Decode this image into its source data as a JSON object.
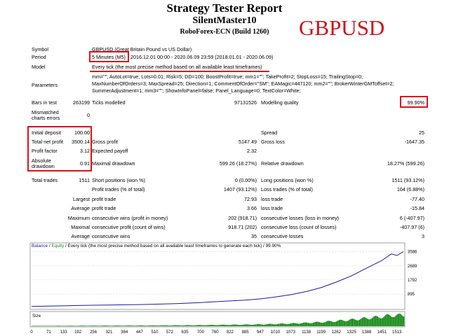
{
  "header": {
    "title": "Strategy Tester Report",
    "ea_name": "SilentMaster10",
    "broker": "RoboForex-ECN (Build 1260)",
    "overlay_symbol": "GBPUSD"
  },
  "info": {
    "symbol_label": "Symbol",
    "symbol_value": "GBPUSD (Great Britain Pound vs US Dollar)",
    "period_label": "Period",
    "period_tf": "5 Minutes (M5)",
    "period_range": "2016.12.01 00:00 - 2020.06.09 23:59 (2018.01.01 - 2020.06.09)",
    "model_label": "Model",
    "model_value": "Every tick (the most precise method based on all available least timeframes)",
    "params_label": "Parameters",
    "params_lines": [
      "mm=\"\"; AutoLot=true; Lots=0.01; Risk=5; DD=100; BoostProfit=true; mm1=\"\"; TakeProfit=2; StopLoss=15; TrailingStop=0;",
      "MaxNumberOfOrders=3; MaxSpread=25; Direction=1; CommentOfOrder=\"SM\"; EAMagic=447120; mm2=\"\"; BrokerWinterGMToffset=2;",
      "SummerAdjustment=1; mm3=\"\"; ShowInfoPanel=false; Panel_Language=0; TextColor=White;"
    ]
  },
  "bars": {
    "bars_label": "Bars in test",
    "bars_value": "263199",
    "ticks_label": "Ticks modelled",
    "ticks_value": "97131526",
    "quality_label": "Modelling quality",
    "quality_value": "99.90%",
    "mismatch_label_1": "Mismatched",
    "mismatch_label_2": "charts errors",
    "mismatch_value": "0"
  },
  "stats": {
    "initial_deposit_label": "Initial deposit",
    "initial_deposit": "100.00",
    "spread_label": "Spread",
    "spread": "25",
    "net_profit_label": "Total net profit",
    "net_profit": "3500.14",
    "gross_profit_label": "Gross profit",
    "gross_profit": "5147.49",
    "gross_loss_label": "Gross loss",
    "gross_loss": "-1647.35",
    "profit_factor_label": "Profit factor",
    "profit_factor": "3.12",
    "expected_payoff_label": "Expected payoff",
    "expected_payoff": "2.32",
    "abs_dd_label_1": "Absolute",
    "abs_dd_label_2": "drawdown",
    "abs_dd": "0.91",
    "max_dd_label": "Maximal drawdown",
    "max_dd": "599.26 (18.27%)",
    "rel_dd_label": "Relative drawdown",
    "rel_dd": "18.27% (599.26)"
  },
  "trades": {
    "total_label": "Total trades",
    "total": "1511",
    "short_label": "Short positions (won %)",
    "short": "0 (0.00%)",
    "long_label": "Long positions (won %)",
    "long": "1511 (93.12%)",
    "pt_label": "Profit trades (% of total)",
    "pt": "1407 (93.12%)",
    "lt_label": "Loss trades (% of total)",
    "lt": "104 (6.88%)",
    "largest_label": "Largest",
    "largest_profit_label": "profit trade",
    "largest_profit": "72.93",
    "largest_loss_label": "loss trade",
    "largest_loss": "-77.40",
    "average_label": "Average",
    "avg_profit_label": "profit trade",
    "avg_profit": "3.66",
    "avg_loss_label": "loss trade",
    "avg_loss": "-15.84",
    "maximum_label": "Maximum",
    "max_cw_label": "consecutive wins (profit in money)",
    "max_cw": "202 (918.71)",
    "max_cl_label": "consecutive losses (loss in money)",
    "max_cl": "6 (-407.97)",
    "maximal_label": "Maximal",
    "maximal_cp_label": "consecutive profit (count of wins)",
    "maximal_cp": "918.71 (202)",
    "maximal_cl_label": "consecutive loss (count of losses)",
    "maximal_cl": "-407.97 (6)",
    "average2_label": "Average",
    "avg_cw_label": "consecutive wins",
    "avg_cw": "35",
    "avg_cl_label": "consecutive losses",
    "avg_cl": "3"
  },
  "chart_header": {
    "balance": "Balance",
    "sep": "/",
    "equity": "Equity",
    "rest": "/ Every tick (the most precise method based on all available least timeframes to generate each tick) / 99.90%"
  },
  "chart_data": {
    "type": "line",
    "series": [
      {
        "name": "Balance",
        "color": "#1a1aa8",
        "x": [
          0,
          71,
          133,
          192,
          256,
          321,
          384,
          447,
          510,
          572,
          635,
          700,
          760,
          822,
          885,
          947,
          1010,
          1073,
          1138,
          1199,
          1262,
          1325,
          1388,
          1451,
          1490,
          1513,
          1540
        ],
        "values": [
          100,
          120,
          140,
          160,
          180,
          190,
          205,
          220,
          240,
          270,
          300,
          350,
          400,
          450,
          500,
          580,
          700,
          850,
          1050,
          1300,
          1650,
          2050,
          2550,
          3030,
          3450,
          3350,
          3600
        ]
      }
    ],
    "y_ticks": [
      "3586",
      "2689",
      "1792",
      "895"
    ],
    "y_tick_values": [
      3586,
      2689,
      1792,
      895
    ],
    "ylim": [
      0,
      3750
    ],
    "xlim": [
      0,
      1540
    ],
    "size_label": "Size",
    "x_ticks": [
      "0",
      "71",
      "133",
      "192",
      "256",
      "321",
      "384",
      "447",
      "510",
      "572",
      "635",
      "700",
      "760",
      "822",
      "885",
      "947",
      "1010",
      "1073",
      "1138",
      "1199",
      "1262",
      "1325",
      "1388",
      "1451",
      "1513"
    ],
    "size_color": "#1a8a1a"
  }
}
